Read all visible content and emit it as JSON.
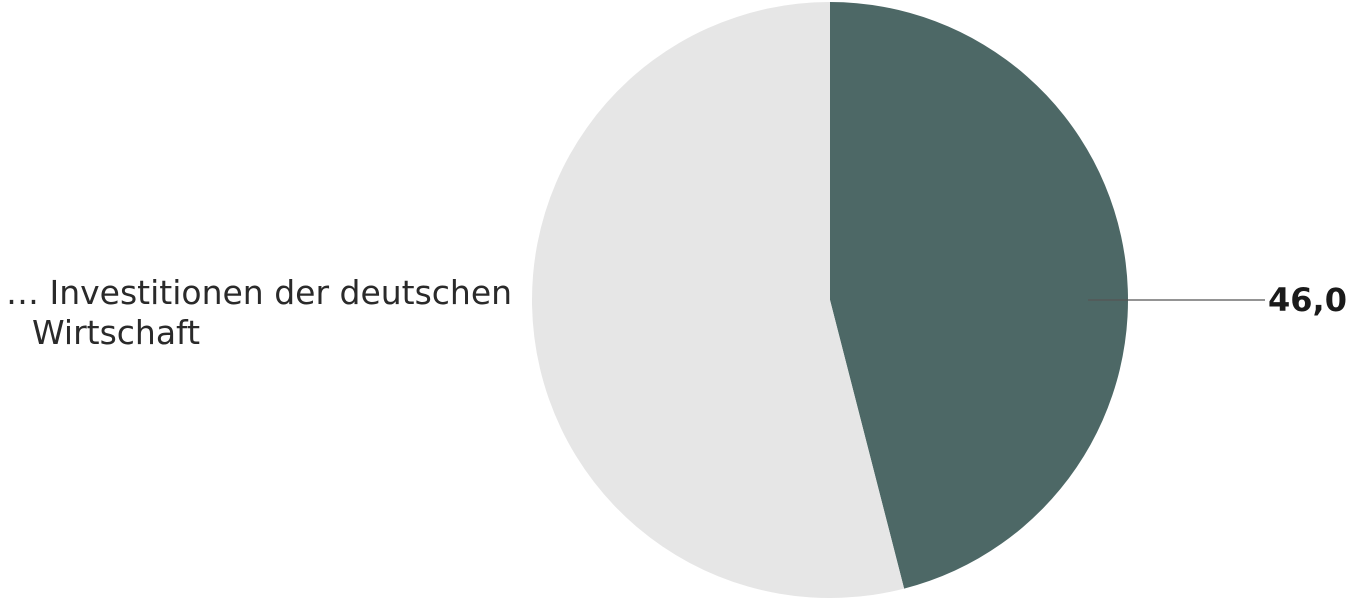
{
  "chart_data": {
    "type": "pie",
    "category_label": "… Investitionen der deutschen Wirtschaft",
    "category_label_lines": [
      "… Investitionen der deutschen",
      "Wirtschaft"
    ],
    "slices": [
      {
        "label": "… Investitionen der deutschen Wirtschaft",
        "value": 46.0,
        "color": "#4d6866"
      },
      {
        "label": "",
        "value": 54.0,
        "color": "#e6e6e6"
      }
    ],
    "value_label": "46,0",
    "start_angle_deg": 0,
    "direction": "clockwise"
  }
}
